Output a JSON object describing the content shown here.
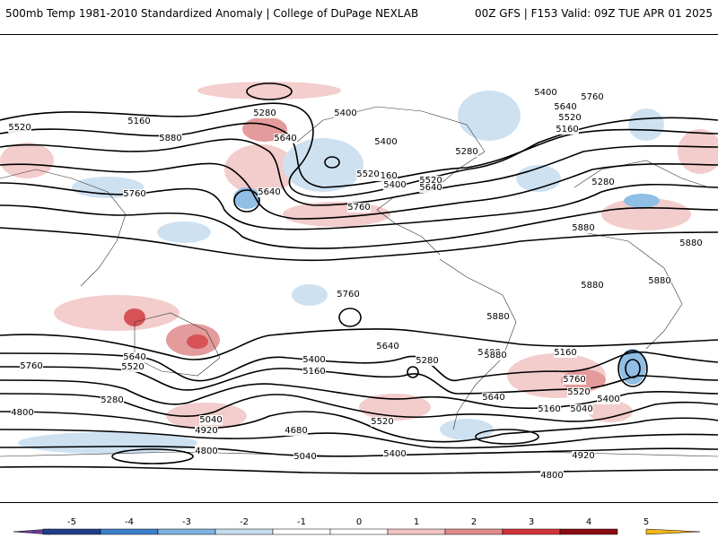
{
  "header": {
    "title": "500mb Temp 1981-2010 Standardized Anomaly | College of DuPage NEXLAB",
    "run_info": "00Z GFS | F153 Valid: 09Z TUE APR 01 2025"
  },
  "colorbar": {
    "ticks": [
      "-5",
      "-4",
      "-3",
      "-2",
      "-1",
      "0",
      "1",
      "2",
      "3",
      "4",
      "5"
    ],
    "colors": [
      "#6a3d9a",
      "#1f3f8a",
      "#3a7fc8",
      "#7db3e0",
      "#c6dcef",
      "#ffffff",
      "#ffffff",
      "#f2c4c4",
      "#e08a8a",
      "#d0343a",
      "#8a0c14",
      "#f2b81a"
    ]
  },
  "contour_labels": [
    "5520",
    "5160",
    "5280",
    "5400",
    "5640",
    "5760",
    "5880",
    "5640",
    "5400",
    "5160",
    "5280",
    "5520",
    "5400",
    "5760",
    "5640",
    "5520",
    "5160",
    "5280",
    "5400",
    "5520",
    "5640",
    "5760",
    "5880",
    "5880",
    "5880",
    "5880",
    "5880",
    "5760",
    "5640",
    "5400",
    "5160",
    "4800",
    "5760",
    "5640",
    "5520",
    "5400",
    "5160",
    "5280",
    "5040",
    "4920",
    "4680",
    "4800",
    "5040",
    "5400",
    "5520",
    "5280",
    "5640",
    "5880",
    "5760",
    "5520",
    "5400",
    "5160",
    "5040",
    "4920",
    "4800"
  ]
}
